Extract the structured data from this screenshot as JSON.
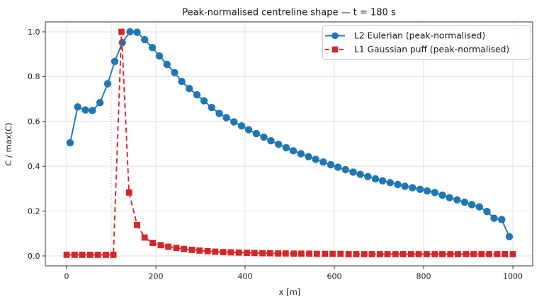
{
  "chart_data": {
    "type": "line",
    "title": "Peak-normalised centreline shape — t = 180 s",
    "xlabel": "x [m]",
    "ylabel": "C / max(C)",
    "xlim": [
      -47.6,
      1044.4
    ],
    "ylim": [
      -0.0442,
      1.0442
    ],
    "xticks": [
      0,
      200,
      400,
      600,
      800,
      1000
    ],
    "xtick_labels": [
      "0",
      "200",
      "400",
      "600",
      "800",
      "1000"
    ],
    "yticks": [
      0,
      0.2,
      0.4,
      0.6,
      0.8,
      1.0
    ],
    "ytick_labels": [
      "0.0",
      "0.2",
      "0.4",
      "0.6",
      "0.8",
      "1.0"
    ],
    "grid": true,
    "grid_color": "#dedede",
    "spine_color": "#333333",
    "vline": {
      "x": 100,
      "style": "dotted",
      "color": "#b0b0b0"
    },
    "legend": {
      "position": "upper right",
      "bg": "#ffffff",
      "border_color": "#cccccc"
    },
    "series": [
      {
        "name": "L2 Eulerian (peak-normalised)",
        "color": "#1f77b4",
        "marker": "circle",
        "linestyle": "solid",
        "x": [
          8,
          25,
          42,
          58,
          75,
          92,
          108,
          125,
          142,
          158,
          175,
          192,
          208,
          225,
          242,
          258,
          275,
          292,
          308,
          325,
          342,
          358,
          375,
          392,
          408,
          425,
          442,
          458,
          475,
          492,
          508,
          525,
          542,
          558,
          575,
          592,
          608,
          625,
          642,
          658,
          675,
          692,
          708,
          725,
          742,
          758,
          775,
          792,
          808,
          825,
          842,
          858,
          875,
          892,
          908,
          925,
          942,
          958,
          975,
          992
        ],
        "y": [
          0.505,
          0.665,
          0.651,
          0.649,
          0.684,
          0.768,
          0.868,
          0.952,
          1.0,
          0.998,
          0.965,
          0.93,
          0.892,
          0.855,
          0.818,
          0.779,
          0.747,
          0.719,
          0.692,
          0.662,
          0.636,
          0.617,
          0.598,
          0.58,
          0.563,
          0.546,
          0.53,
          0.514,
          0.498,
          0.483,
          0.469,
          0.456,
          0.443,
          0.431,
          0.419,
          0.407,
          0.396,
          0.385,
          0.374,
          0.364,
          0.354,
          0.344,
          0.335,
          0.327,
          0.319,
          0.311,
          0.304,
          0.297,
          0.29,
          0.283,
          0.271,
          0.26,
          0.25,
          0.24,
          0.229,
          0.219,
          0.198,
          0.168,
          0.162,
          0.086
        ]
      },
      {
        "name": "L1 Gaussian puff (peak-normalised)",
        "color": "#d62728",
        "marker": "square",
        "linestyle": "dashed",
        "x": [
          0,
          18,
          35,
          53,
          70,
          88,
          105,
          123,
          140,
          158,
          175,
          193,
          211,
          228,
          246,
          263,
          281,
          298,
          316,
          333,
          351,
          368,
          386,
          404,
          421,
          439,
          456,
          474,
          491,
          509,
          526,
          544,
          561,
          579,
          596,
          614,
          632,
          649,
          667,
          684,
          702,
          719,
          737,
          754,
          772,
          789,
          807,
          825,
          842,
          860,
          877,
          895,
          912,
          930,
          947,
          965,
          982,
          1000
        ],
        "y": [
          0.005,
          0.005,
          0.005,
          0.005,
          0.005,
          0.005,
          0.005,
          1.0,
          0.283,
          0.138,
          0.082,
          0.058,
          0.048,
          0.041,
          0.036,
          0.031,
          0.027,
          0.024,
          0.021,
          0.019,
          0.017,
          0.016,
          0.015,
          0.014,
          0.013,
          0.012,
          0.012,
          0.011,
          0.011,
          0.01,
          0.01,
          0.01,
          0.009,
          0.009,
          0.009,
          0.009,
          0.008,
          0.008,
          0.008,
          0.008,
          0.008,
          0.008,
          0.008,
          0.008,
          0.008,
          0.008,
          0.008,
          0.008,
          0.008,
          0.008,
          0.008,
          0.008,
          0.008,
          0.008,
          0.008,
          0.008,
          0.008,
          0.008
        ]
      }
    ]
  }
}
